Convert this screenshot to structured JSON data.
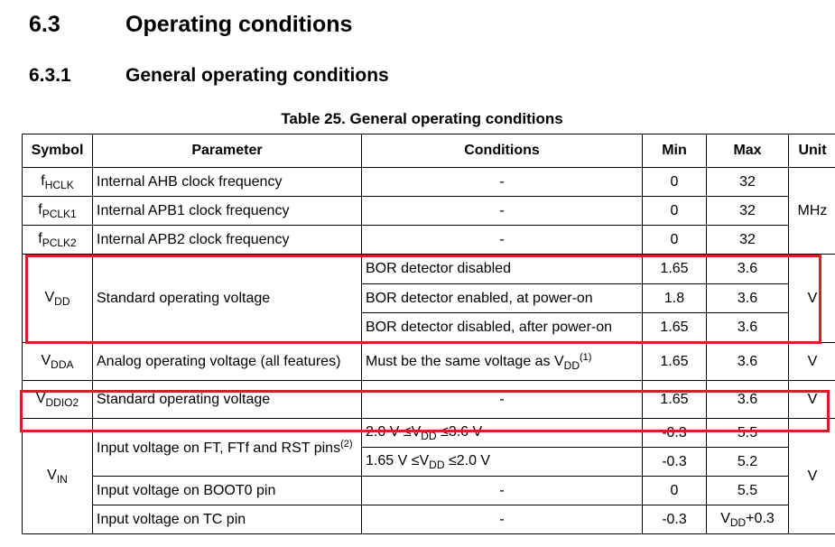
{
  "section": {
    "number": "6.3",
    "title": "Operating conditions"
  },
  "subsection": {
    "number": "6.3.1",
    "title": "General operating conditions"
  },
  "table_caption": "Table 25. General operating conditions",
  "headers": {
    "symbol": "Symbol",
    "parameter": "Parameter",
    "conditions": "Conditions",
    "min": "Min",
    "max": "Max",
    "unit": "Unit"
  },
  "rows": {
    "fhclk": {
      "sym_main": "f",
      "sym_sub": "HCLK",
      "parameter": "Internal AHB clock frequency",
      "conditions": "-",
      "min": "0",
      "max": "32"
    },
    "fpclk1": {
      "sym_main": "f",
      "sym_sub": "PCLK1",
      "parameter": "Internal APB1 clock frequency",
      "conditions": "-",
      "min": "0",
      "max": "32"
    },
    "fpclk2": {
      "sym_main": "f",
      "sym_sub": "PCLK2",
      "parameter": "Internal APB2 clock frequency",
      "conditions": "-",
      "min": "0",
      "max": "32"
    },
    "clk_unit": "MHz",
    "vdd": {
      "sym_main": "V",
      "sym_sub": "DD",
      "parameter": "Standard operating voltage",
      "unit": "V",
      "sub": [
        {
          "conditions": "BOR detector disabled",
          "min": "1.65",
          "max": "3.6"
        },
        {
          "conditions": "BOR detector enabled, at power-on",
          "min": "1.8",
          "max": "3.6"
        },
        {
          "conditions": "BOR detector disabled, after power-on",
          "min": "1.65",
          "max": "3.6"
        }
      ]
    },
    "vdda": {
      "sym_main": "V",
      "sym_sub": "DDA",
      "parameter": "Analog operating voltage (all features)",
      "cond_pre": "Must be the same voltage as V",
      "cond_sub": "DD",
      "cond_sup": "(1)",
      "min": "1.65",
      "max": "3.6",
      "unit": "V"
    },
    "vddio2": {
      "sym_main": "V",
      "sym_sub": "DDIO2",
      "parameter": "Standard operating voltage",
      "conditions": "-",
      "min": "1.65",
      "max": "3.6",
      "unit": "V"
    },
    "vin": {
      "sym_main": "V",
      "sym_sub": "IN",
      "unit": "V",
      "ft_param": "Input voltage on FT, FTf and RST pins",
      "ft_sup": "(2)",
      "ft_sub": [
        {
          "cond_pre": "2.0 V ≤V",
          "cond_sub": "DD",
          "cond_post": " ≤3.6 V",
          "min": "-0.3",
          "max": "5.5"
        },
        {
          "cond_pre": "1.65 V ≤V",
          "cond_sub": "DD",
          "cond_post": " ≤2.0 V",
          "min": "-0.3",
          "max": "5.2"
        }
      ],
      "boot0": {
        "parameter": "Input voltage on BOOT0 pin",
        "conditions": "-",
        "min": "0",
        "max": "5.5"
      },
      "tc": {
        "parameter": "Input voltage on TC pin",
        "conditions": "-",
        "min": "-0.3",
        "max_main": "V",
        "max_sub": "DD",
        "max_post": "+0.3"
      }
    }
  }
}
